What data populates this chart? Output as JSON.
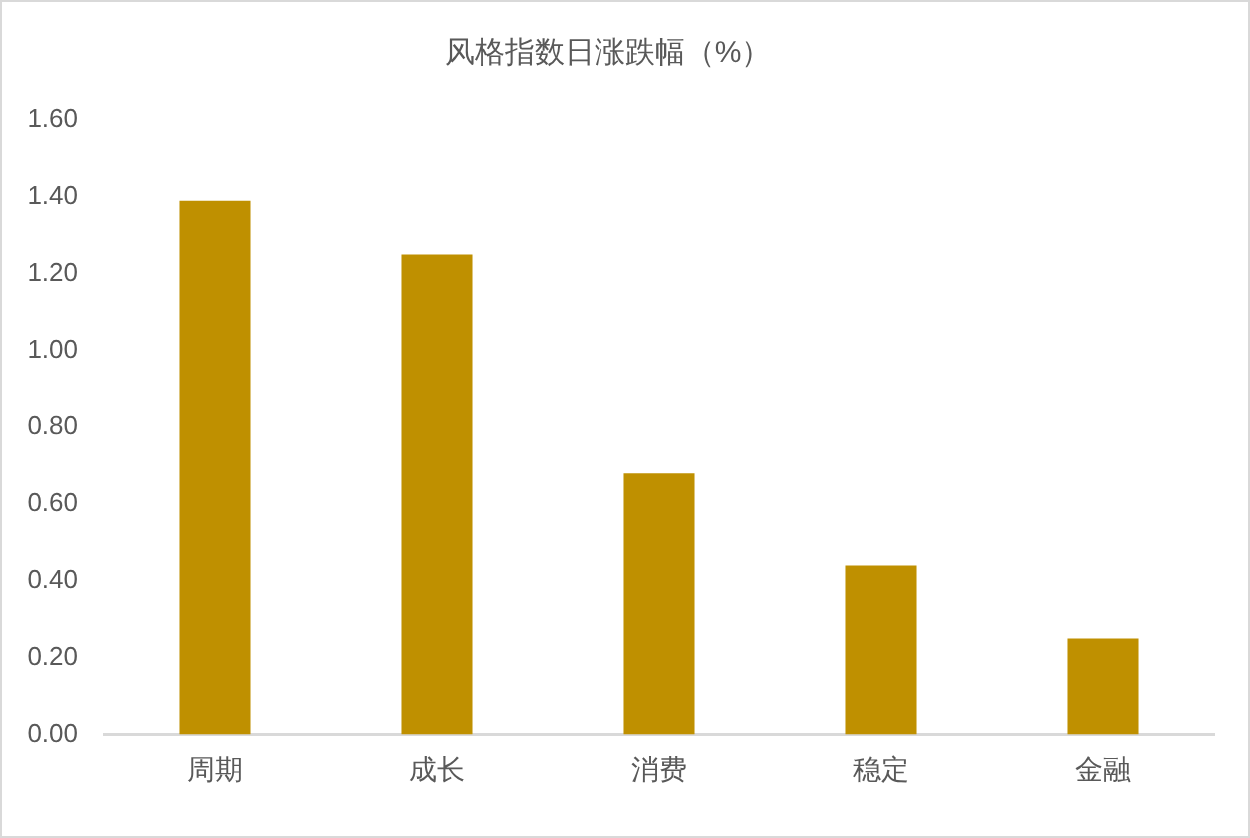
{
  "chart_data": {
    "type": "bar",
    "title": "风格指数日涨跌幅（%）",
    "categories": [
      "周期",
      "成长",
      "消费",
      "稳定",
      "金融"
    ],
    "values": [
      1.39,
      1.25,
      0.68,
      0.44,
      0.25
    ],
    "color": "#bf9000",
    "ylim": [
      0,
      1.6
    ],
    "yticks": [
      {
        "value": 0,
        "label": "0.00"
      },
      {
        "value": 0.2,
        "label": "0.20"
      },
      {
        "value": 0.4,
        "label": "0.40"
      },
      {
        "value": 0.6,
        "label": "0.60"
      },
      {
        "value": 0.8,
        "label": "0.80"
      },
      {
        "value": 1.0,
        "label": "1.00"
      },
      {
        "value": 1.2,
        "label": "1.20"
      },
      {
        "value": 1.4,
        "label": "1.40"
      },
      {
        "value": 1.6,
        "label": "1.60"
      }
    ],
    "grid": false
  }
}
